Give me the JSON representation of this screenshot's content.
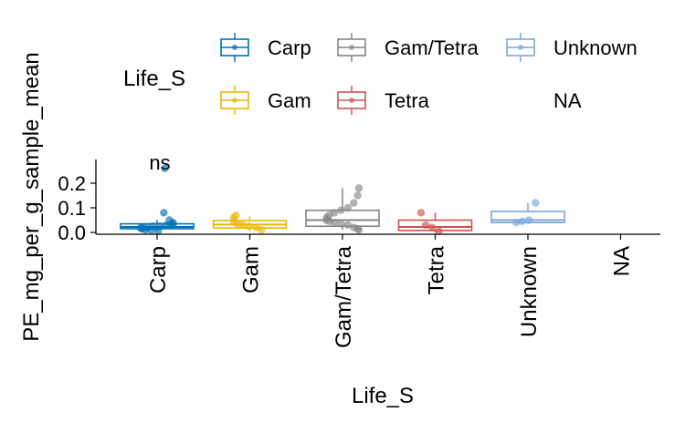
{
  "chart_data": {
    "type": "boxplot",
    "title": "",
    "xlabel": "Life_S",
    "ylabel": "PE_mg_per_g_sample_mean",
    "categories": [
      "Carp",
      "Gam",
      "Gam/Tetra",
      "Tetra",
      "Unknown",
      "NA"
    ],
    "yticks": [
      0.0,
      0.1,
      0.2
    ],
    "ytick_labels": [
      "0.0",
      "0.1",
      "0.2"
    ],
    "ylim": [
      -0.01,
      0.27
    ],
    "annotation": "ns",
    "legend": {
      "title": "Life_S",
      "placement": "top",
      "entries": [
        "Carp",
        "Gam/Tetra",
        "Unknown",
        "Gam",
        "Tetra",
        "NA"
      ]
    },
    "series": [
      {
        "name": "Carp",
        "color": "#0072B5",
        "box": {
          "min": 0.005,
          "q1": 0.015,
          "median": 0.022,
          "q3": 0.035,
          "max": 0.05
        },
        "points": [
          0.08,
          0.05,
          0.04,
          0.035,
          0.03,
          0.03,
          0.025,
          0.025,
          0.02,
          0.02,
          0.018,
          0.015,
          0.01,
          0.008,
          0.005,
          0.26
        ]
      },
      {
        "name": "Gam",
        "color": "#E7B800",
        "box": {
          "min": 0.005,
          "q1": 0.018,
          "median": 0.032,
          "q3": 0.048,
          "max": 0.065
        },
        "points": [
          0.07,
          0.06,
          0.045,
          0.035,
          0.03,
          0.025,
          0.02,
          0.01
        ]
      },
      {
        "name": "Gam/Tetra",
        "color": "#868686",
        "box": {
          "min": 0.01,
          "q1": 0.025,
          "median": 0.05,
          "q3": 0.09,
          "max": 0.18
        },
        "points": [
          0.18,
          0.15,
          0.12,
          0.1,
          0.09,
          0.08,
          0.07,
          0.06,
          0.05,
          0.045,
          0.04,
          0.035,
          0.03,
          0.02,
          0.015,
          0.01
        ]
      },
      {
        "name": "Tetra",
        "color": "#CD534C",
        "box": {
          "min": 0.0,
          "q1": 0.008,
          "median": 0.022,
          "q3": 0.05,
          "max": 0.08
        },
        "points": [
          0.08,
          0.03,
          0.02,
          0.005
        ]
      },
      {
        "name": "Unknown",
        "color": "#7AA6DC",
        "box": {
          "min": 0.035,
          "q1": 0.04,
          "median": 0.05,
          "q3": 0.085,
          "max": 0.12
        },
        "points": [
          0.12,
          0.05,
          0.045,
          0.04
        ]
      },
      {
        "name": "NA",
        "color": "#000000",
        "box": null,
        "points": []
      }
    ]
  }
}
